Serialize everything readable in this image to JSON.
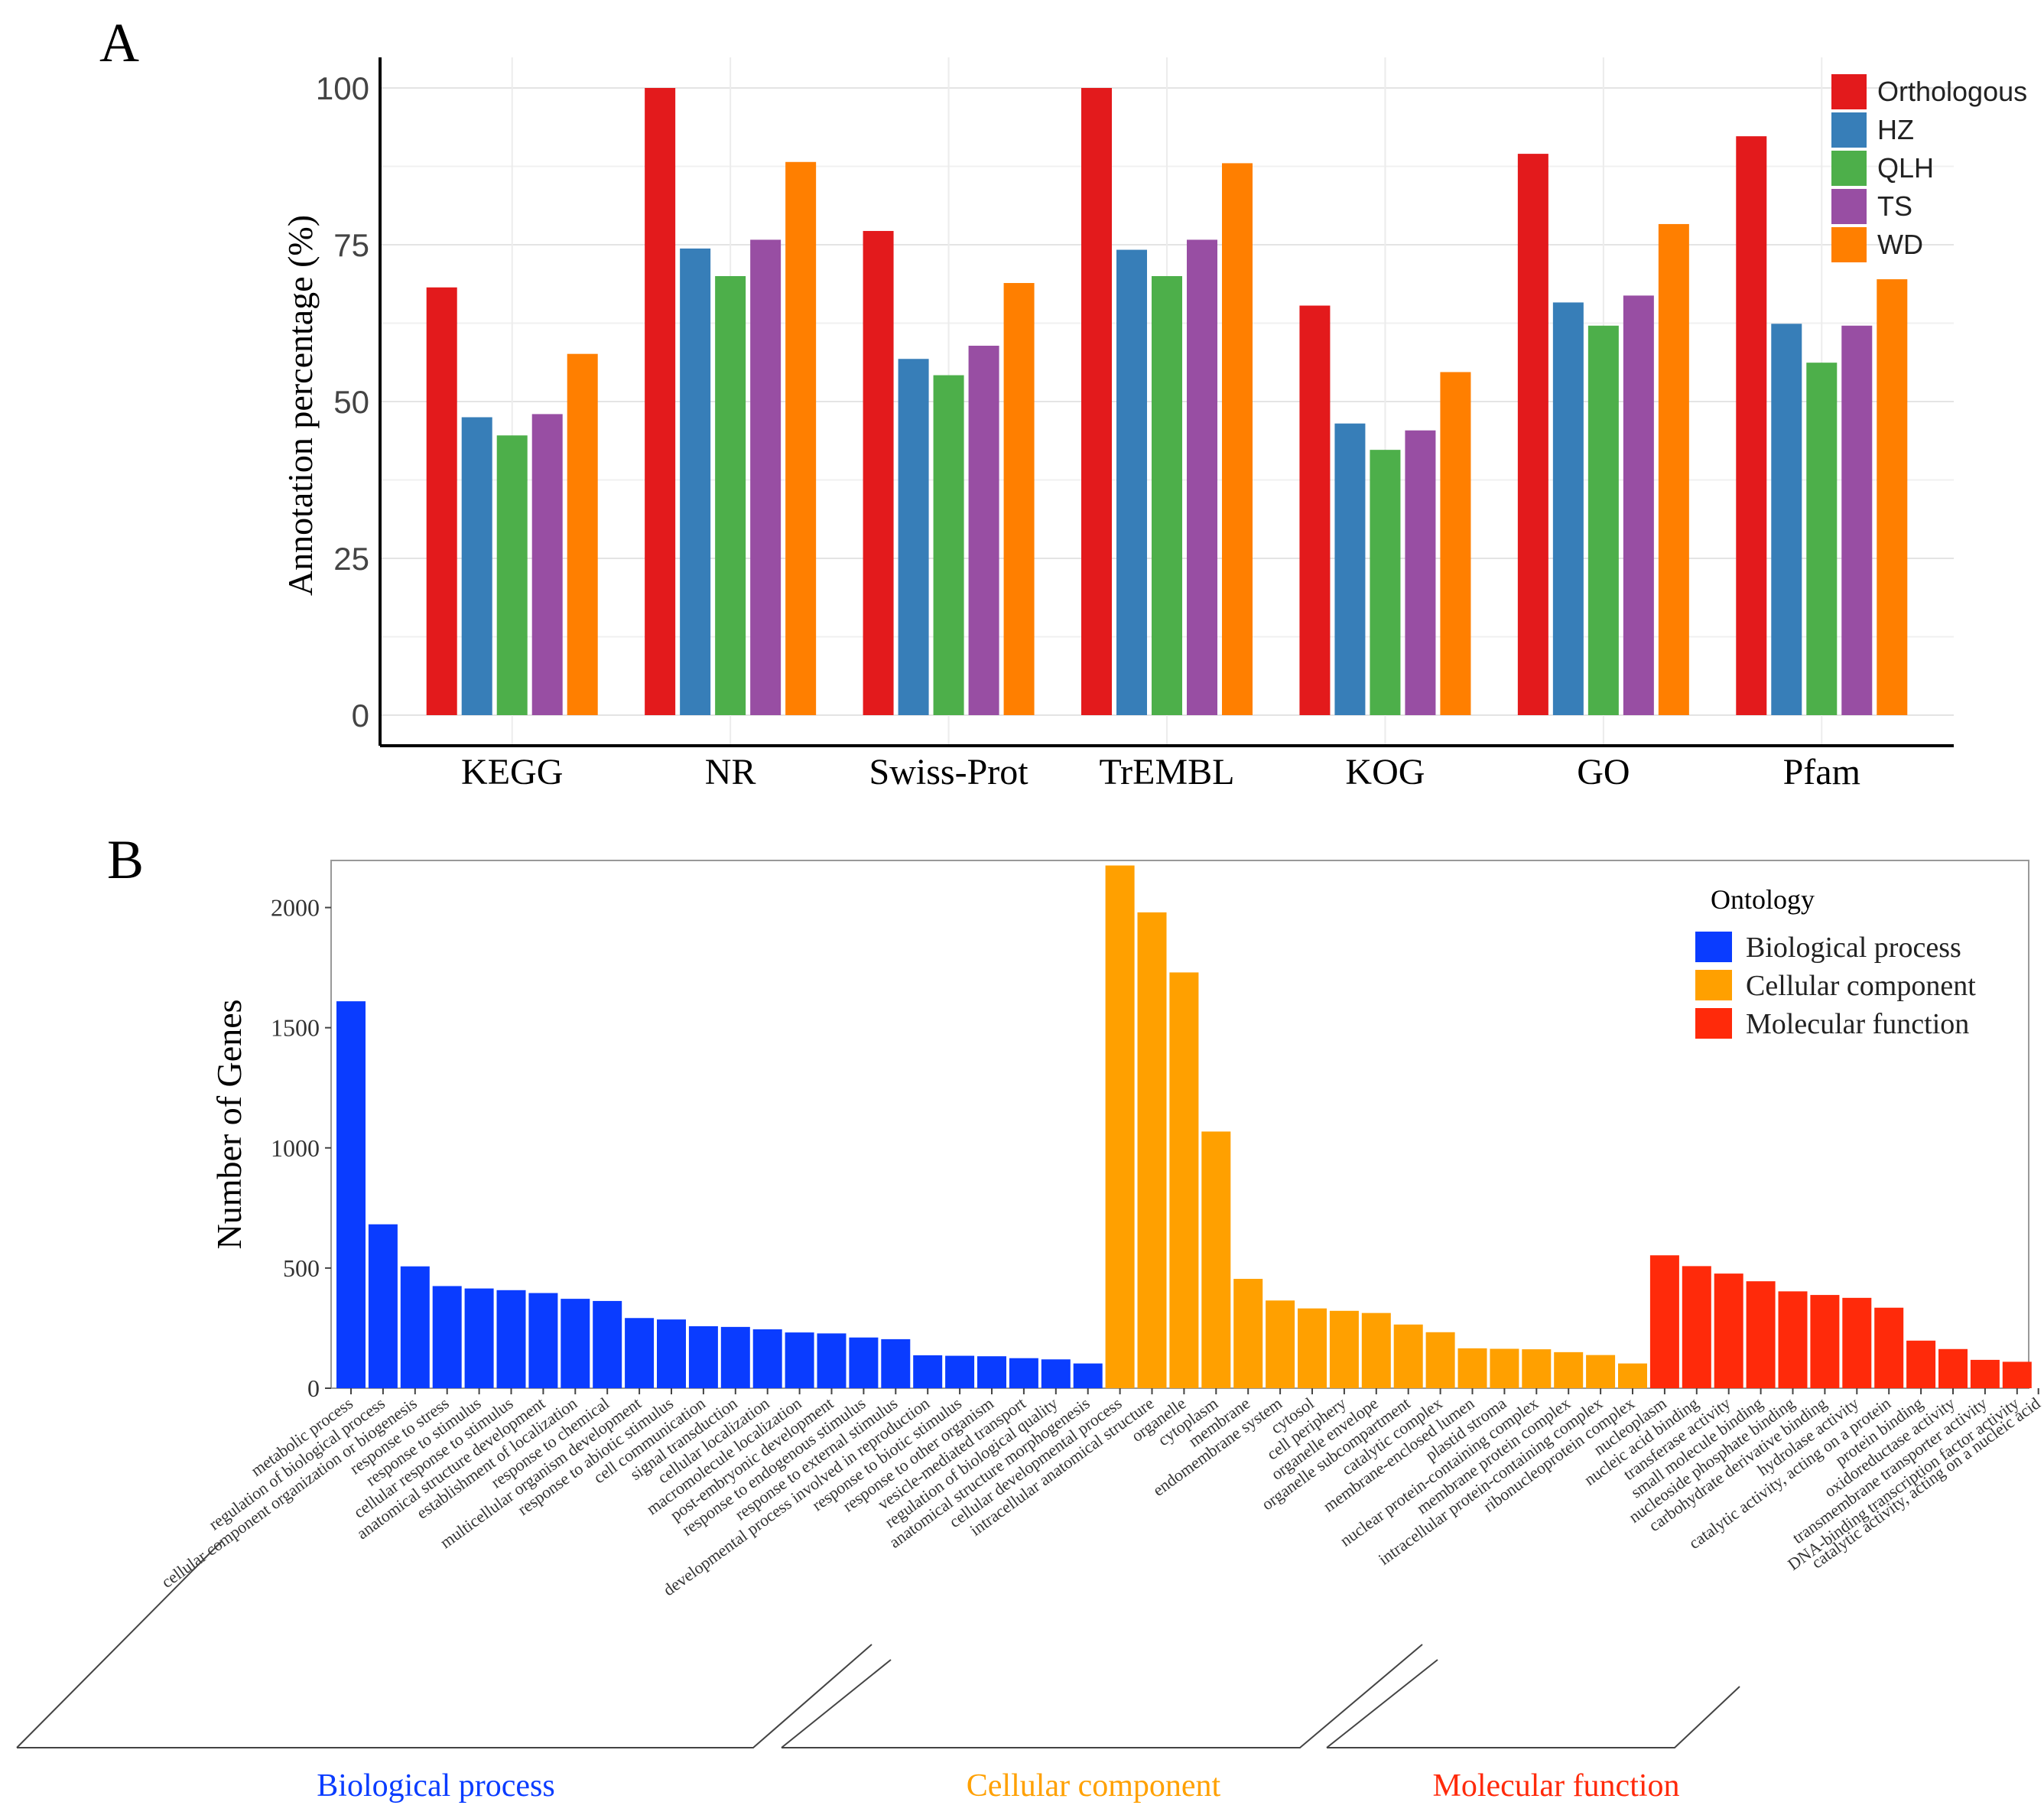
{
  "panel_labels": {
    "a": "A",
    "b": "B"
  },
  "colors": {
    "orthologous": "#e31a1c",
    "hz": "#377eb8",
    "qlh": "#4daf4a",
    "ts": "#984ea3",
    "wd": "#ff7f00",
    "bp": "#0a3cff",
    "cc": "#ffa000",
    "mf": "#ff2a0a"
  },
  "chart_data": [
    {
      "type": "bar",
      "title": "A",
      "xlabel": "",
      "ylabel": "Annotation percentage (%)",
      "ylim": [
        0,
        100
      ],
      "yticks": [
        0,
        25,
        50,
        75,
        100
      ],
      "grid": true,
      "legend_position": "top-right",
      "categories": [
        "KEGG",
        "NR",
        "Swiss-Prot",
        "TrEMBL",
        "KOG",
        "GO",
        "Pfam"
      ],
      "series": [
        {
          "name": "Orthologous",
          "color": "#e31a1c",
          "values": [
            68.2,
            100,
            77.2,
            100,
            65.3,
            89.5,
            92.3
          ]
        },
        {
          "name": "HZ",
          "color": "#377eb8",
          "values": [
            47.5,
            74.4,
            56.8,
            74.2,
            46.5,
            65.8,
            62.4
          ]
        },
        {
          "name": "QLH",
          "color": "#4daf4a",
          "values": [
            44.6,
            70.0,
            54.2,
            70.0,
            42.3,
            62.1,
            56.2
          ]
        },
        {
          "name": "TS",
          "color": "#984ea3",
          "values": [
            48.0,
            75.8,
            58.9,
            75.8,
            45.4,
            66.9,
            62.1
          ]
        },
        {
          "name": "WD",
          "color": "#ff7f00",
          "values": [
            57.6,
            88.2,
            68.9,
            88.0,
            54.7,
            78.3,
            69.5
          ]
        }
      ]
    },
    {
      "type": "bar",
      "title": "B",
      "xlabel": "",
      "ylabel": "Number of Genes",
      "ylim": [
        0,
        2180
      ],
      "yticks": [
        0,
        500,
        1000,
        1500,
        2000
      ],
      "legend_title": "Ontology",
      "legend_position": "top-right",
      "legend": [
        {
          "name": "Biological process",
          "color": "#0a3cff"
        },
        {
          "name": "Cellular component",
          "color": "#ffa000"
        },
        {
          "name": "Molecular function",
          "color": "#ff2a0a"
        }
      ],
      "groups": [
        {
          "name": "Biological process",
          "color": "#0a3cff",
          "bars": [
            {
              "label": "metabolic process",
              "value": 1610
            },
            {
              "label": "regulation of biological process",
              "value": 682
            },
            {
              "label": "cellular component organization or biogenesis",
              "value": 507
            },
            {
              "label": "response to stress",
              "value": 425
            },
            {
              "label": "response to stimulus",
              "value": 415
            },
            {
              "label": "cellular response to stimulus",
              "value": 408
            },
            {
              "label": "anatomical structure development",
              "value": 396
            },
            {
              "label": "establishment of localization",
              "value": 372
            },
            {
              "label": "response to chemical",
              "value": 363
            },
            {
              "label": "multicellular organism development",
              "value": 292
            },
            {
              "label": "response to abiotic stimulus",
              "value": 286
            },
            {
              "label": "cell communication",
              "value": 258
            },
            {
              "label": "signal transduction",
              "value": 255
            },
            {
              "label": "cellular localization",
              "value": 245
            },
            {
              "label": "macromolecule localization",
              "value": 232
            },
            {
              "label": "post-embryonic development",
              "value": 228
            },
            {
              "label": "response to endogenous stimulus",
              "value": 211
            },
            {
              "label": "response to external stimulus",
              "value": 204
            },
            {
              "label": "developmental process involved in reproduction",
              "value": 137
            },
            {
              "label": "response to biotic stimulus",
              "value": 135
            },
            {
              "label": "response to other organism",
              "value": 133
            },
            {
              "label": "vesicle-mediated transport",
              "value": 125
            },
            {
              "label": "regulation of biological quality",
              "value": 120
            },
            {
              "label": "anatomical structure morphogenesis",
              "value": 103
            }
          ]
        },
        {
          "name": "Cellular component",
          "color": "#ffa000",
          "bars": [
            {
              "label": "cellular developmental process",
              "value": 2175
            },
            {
              "label": "intracellular anatomical structure",
              "value": 1980
            },
            {
              "label": "organelle",
              "value": 1730
            },
            {
              "label": "cytoplasm",
              "value": 1068
            },
            {
              "label": "membrane",
              "value": 455
            },
            {
              "label": "endomembrane system",
              "value": 365
            },
            {
              "label": "cytosol",
              "value": 332
            },
            {
              "label": "cell periphery",
              "value": 322
            },
            {
              "label": "organelle envelope",
              "value": 313
            },
            {
              "label": "organelle subcompartment",
              "value": 265
            },
            {
              "label": "catalytic complex",
              "value": 233
            },
            {
              "label": "membrane-enclosed lumen",
              "value": 166
            },
            {
              "label": "plastid stroma",
              "value": 164
            },
            {
              "label": "nuclear protein-containing complex",
              "value": 162
            },
            {
              "label": "membrane protein complex",
              "value": 150
            },
            {
              "label": "intracellular protein-containing complex",
              "value": 138
            },
            {
              "label": "ribonucleoprotein complex",
              "value": 103
            }
          ]
        },
        {
          "name": "Molecular function",
          "color": "#ff2a0a",
          "bars": [
            {
              "label": "nucleoplasm",
              "value": 553
            },
            {
              "label": "nucleic acid binding",
              "value": 508
            },
            {
              "label": "transferase activity",
              "value": 477
            },
            {
              "label": "small molecule binding",
              "value": 445
            },
            {
              "label": "nucleoside phosphate binding",
              "value": 403
            },
            {
              "label": "carbohydrate derivative binding",
              "value": 388
            },
            {
              "label": "hydrolase activity",
              "value": 376
            },
            {
              "label": "catalytic activity, acting on a protein",
              "value": 335
            },
            {
              "label": "protein binding",
              "value": 198
            },
            {
              "label": "oxidoreductase activity",
              "value": 163
            },
            {
              "label": "transmembrane transporter activity",
              "value": 118
            },
            {
              "label": "DNA-binding transcription factor activity",
              "value": 110
            }
          ]
        }
      ],
      "extra_tick_label": "catalytic activity, acting on a nucleic acid",
      "group_labels": [
        "Biological process",
        "Cellular component",
        "Molecular function"
      ]
    }
  ]
}
